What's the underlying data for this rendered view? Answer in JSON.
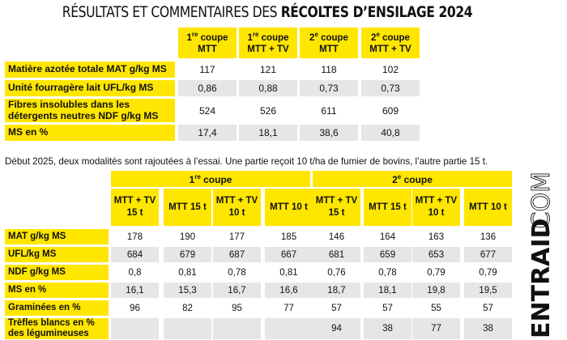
{
  "title": {
    "light": "RÉSULTATS ET COMMENTAIRES DES ",
    "bold": "RÉCOLTES D’ENSILAGE 2024"
  },
  "table1": {
    "headers": [
      {
        "line1": "1re coupe",
        "line2": "MTT"
      },
      {
        "line1": "1re coupe",
        "line2": "MTT + TV"
      },
      {
        "line1": "2e coupe",
        "line2": "MTT"
      },
      {
        "line1": "2e coupe",
        "line2": "MTT + TV"
      }
    ],
    "rows": [
      {
        "label": "Matière azotée totale MAT g/kg MS",
        "values": [
          "117",
          "121",
          "118",
          "102"
        ]
      },
      {
        "label": "Unité fourragère lait UFL/kg MS",
        "values": [
          "0,86",
          "0,88",
          "0,73",
          "0,73"
        ]
      },
      {
        "label": "Fibres insolubles dans les détergents neutres NDF g/kg MS",
        "values": [
          "524",
          "526",
          "611",
          "609"
        ]
      },
      {
        "label": "MS en %",
        "values": [
          "17,4",
          "18,1",
          "38,6",
          "40,8"
        ]
      }
    ]
  },
  "intro": "Début 2025, deux modalités sont rajoutées à l’essai. Une partie reçoit 10 t/ha de fumier de bovins, l’autre partie 15 t.",
  "table2": {
    "groups": [
      "1re coupe",
      "2e coupe"
    ],
    "headers": [
      {
        "line1": "MTT + TV",
        "line2": "15 t"
      },
      {
        "line1": "MTT 15 t",
        "line2": ""
      },
      {
        "line1": "MTT + TV",
        "line2": "10 t"
      },
      {
        "line1": "MTT 10 t",
        "line2": ""
      },
      {
        "line1": "MTT + TV",
        "line2": "15 t"
      },
      {
        "line1": "MTT 15 t",
        "line2": ""
      },
      {
        "line1": "MTT + TV",
        "line2": "10 t"
      },
      {
        "line1": "MTT 10 t",
        "line2": ""
      }
    ],
    "rows": [
      {
        "label": "MAT g/kg MS",
        "values": [
          "178",
          "190",
          "177",
          "185",
          "146",
          "164",
          "163",
          "136"
        ]
      },
      {
        "label": "UFL/kg MS",
        "values": [
          "684",
          "679",
          "687",
          "667",
          "681",
          "659",
          "653",
          "677"
        ]
      },
      {
        "label": "NDF g/kg MS",
        "values": [
          "0,8",
          "0,81",
          "0,78",
          "0,81",
          "0,76",
          "0,78",
          "0,79",
          "0,79"
        ]
      },
      {
        "label": "MS en %",
        "values": [
          "16,1",
          "15,3",
          "16,7",
          "16,6",
          "18,7",
          "18,1",
          "19,8",
          "19,5"
        ]
      },
      {
        "label": "Graminées en %",
        "values": [
          "96",
          "82",
          "95",
          "77",
          "57",
          "57",
          "55",
          "57"
        ]
      },
      {
        "label": "Trèfles blancs en % des légumineuses",
        "values": [
          "",
          "",
          "",
          "",
          "94",
          "38",
          "77",
          "38"
        ]
      }
    ]
  },
  "logo": {
    "text": "ENTRAID.COM"
  }
}
